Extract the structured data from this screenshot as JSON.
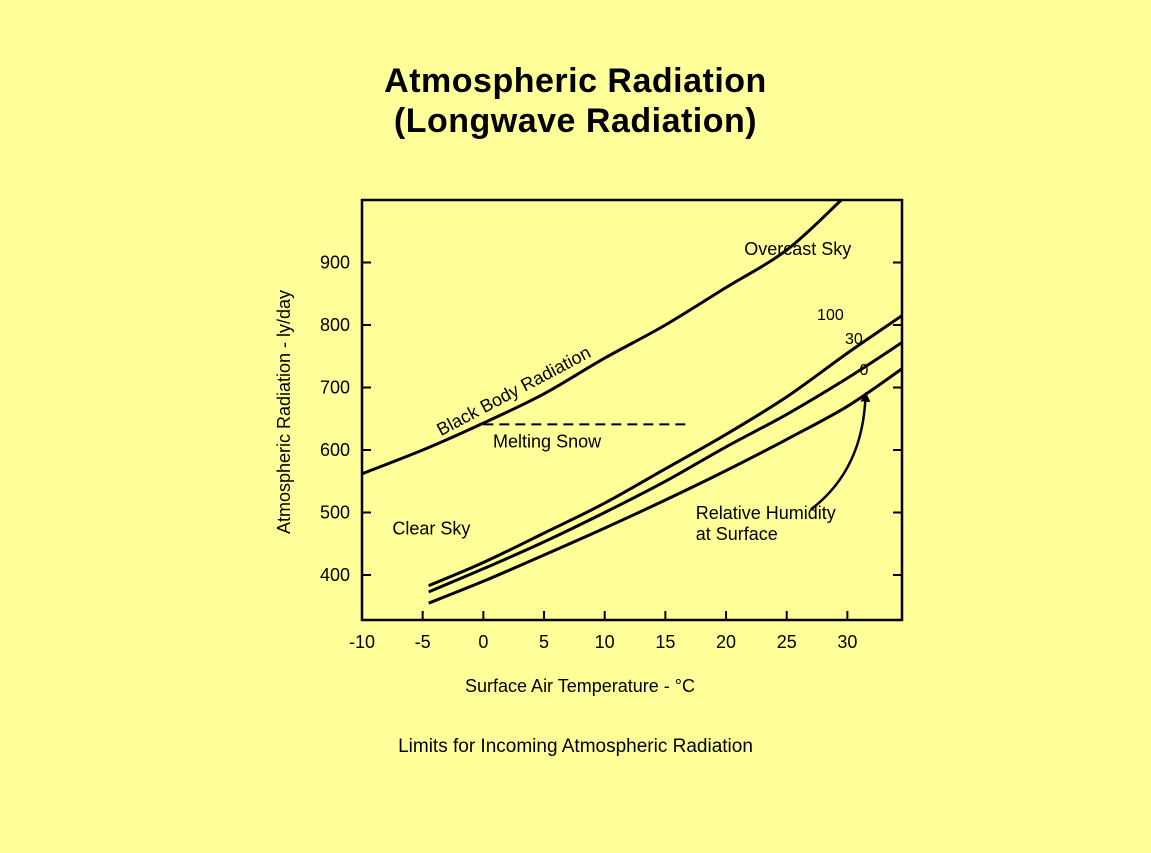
{
  "title_line1": "Atmospheric Radiation",
  "title_line2": "(Longwave Radiation)",
  "caption": "Limits for Incoming Atmospheric Radiation",
  "colors": {
    "background": "#ffff99",
    "ink": "#000000"
  },
  "chart_data": {
    "type": "line",
    "xlabel": "Surface Air Temperature - °C",
    "ylabel": "Atmospheric Radiation - ly/day",
    "xlim": [
      -10,
      34.5
    ],
    "ylim": [
      328,
      1000
    ],
    "xticks": [
      -10,
      -5,
      0,
      5,
      10,
      15,
      20,
      25,
      30
    ],
    "yticks": [
      400,
      500,
      600,
      700,
      800,
      900
    ],
    "grid": false,
    "series": [
      {
        "name": "Black Body Radiation",
        "label_kind": "curve",
        "x": [
          -10,
          -5,
          0,
          5,
          10,
          15,
          20,
          25,
          29.5
        ],
        "y": [
          562,
          600,
          643,
          690,
          747,
          800,
          860,
          920,
          1000
        ]
      },
      {
        "name": "100",
        "label_kind": "end",
        "x": [
          -4.5,
          0,
          5,
          10,
          15,
          20,
          25,
          30,
          34.5
        ],
        "y": [
          383,
          420,
          467,
          515,
          570,
          625,
          685,
          755,
          815
        ]
      },
      {
        "name": "30",
        "label_kind": "end",
        "x": [
          -4.5,
          0,
          5,
          10,
          15,
          20,
          25,
          30,
          34.5
        ],
        "y": [
          373,
          410,
          453,
          500,
          550,
          605,
          657,
          715,
          772
        ]
      },
      {
        "name": "0",
        "label_kind": "end",
        "x": [
          -4.5,
          0,
          5,
          10,
          15,
          20,
          25,
          30,
          34.5
        ],
        "y": [
          355,
          390,
          432,
          475,
          520,
          567,
          617,
          670,
          730
        ]
      },
      {
        "name": "Melting Snow",
        "label_kind": "dashed",
        "x": [
          0,
          17
        ],
        "y": [
          641,
          641
        ]
      }
    ],
    "annotations": [
      {
        "text": "Overcast Sky",
        "x": 21.5,
        "y": 912
      },
      {
        "text": "Clear Sky",
        "x": -7.5,
        "y": 465
      },
      {
        "text": "Melting Snow",
        "x": 0.8,
        "y": 604
      },
      {
        "text": "Relative Humidity",
        "x": 17.5,
        "y": 490
      },
      {
        "text": "at Surface",
        "x": 17.5,
        "y": 456
      }
    ],
    "arrow": {
      "from": [
        27,
        505
      ],
      "to": [
        31.5,
        690
      ]
    }
  }
}
